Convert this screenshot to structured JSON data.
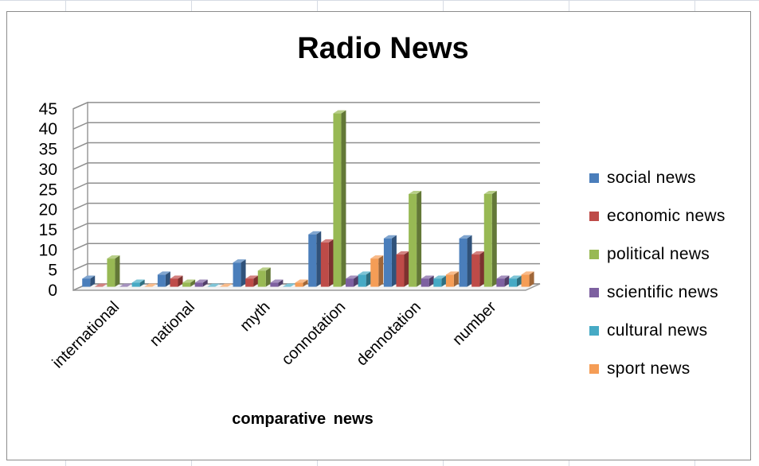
{
  "chart_data": {
    "type": "bar",
    "title": "Radio News",
    "xlabel": "comparative  news",
    "ylabel": "",
    "ylim": [
      0,
      45
    ],
    "yticks": [
      0,
      5,
      10,
      15,
      20,
      25,
      30,
      35,
      40,
      45
    ],
    "grid": true,
    "legend_position": "right",
    "style": "3d-clustered-column",
    "categories": [
      "international",
      "national",
      "myth",
      "connotation",
      "dennotation",
      "number"
    ],
    "series": [
      {
        "name": "social news",
        "color": "#4a7ebb",
        "values": [
          2,
          3,
          6,
          13,
          12,
          12
        ]
      },
      {
        "name": "economic news",
        "color": "#be4b48",
        "values": [
          0,
          2,
          2,
          11,
          8,
          8
        ]
      },
      {
        "name": "political news",
        "color": "#98b954",
        "values": [
          7,
          1,
          4,
          43,
          23,
          23
        ]
      },
      {
        "name": "scientific news",
        "color": "#7d60a0",
        "values": [
          0,
          1,
          1,
          2,
          2,
          2
        ]
      },
      {
        "name": "cultural news",
        "color": "#46aac5",
        "values": [
          1,
          0,
          0,
          3,
          2,
          2
        ]
      },
      {
        "name": "sport news",
        "color": "#f59d56",
        "values": [
          0,
          0,
          1,
          7,
          3,
          3
        ]
      }
    ]
  }
}
